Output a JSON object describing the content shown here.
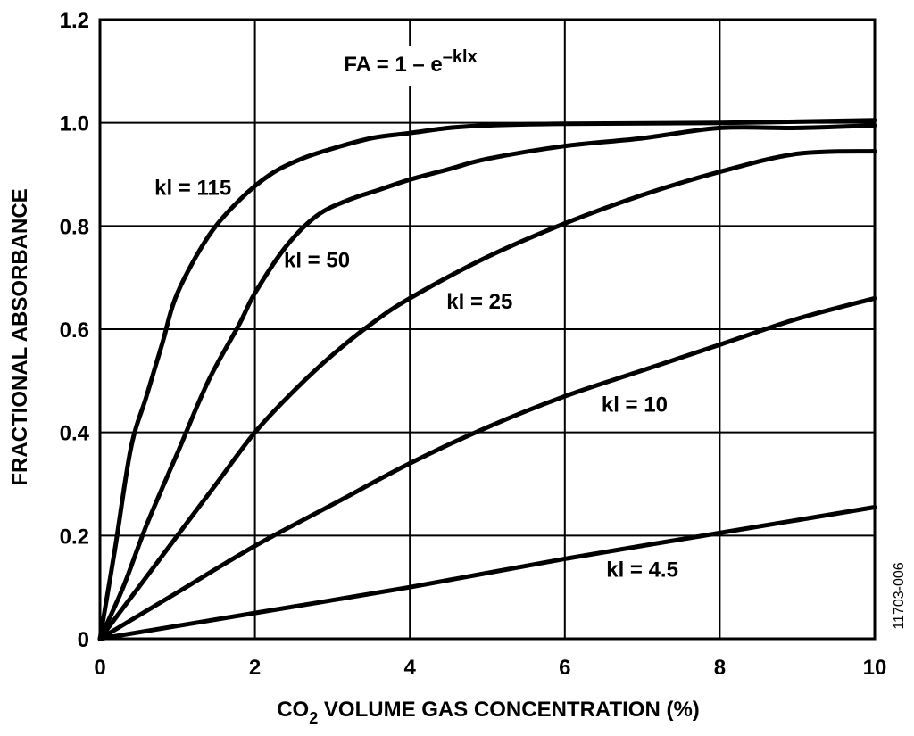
{
  "chart_data": {
    "type": "line",
    "title": "",
    "formula": {
      "base": "FA = 1 – e",
      "exponent": "–klx"
    },
    "xlabel": {
      "prefix": "CO",
      "subscript": "2",
      "suffix": " VOLUME GAS CONCENTRATION (%)"
    },
    "ylabel": "FRACTIONAL ABSORBANCE",
    "xlim": [
      0,
      10
    ],
    "ylim": [
      0,
      1.2
    ],
    "xticks": [
      {
        "value": 0,
        "label": "0"
      },
      {
        "value": 2,
        "label": "2"
      },
      {
        "value": 4,
        "label": "4"
      },
      {
        "value": 6,
        "label": "6"
      },
      {
        "value": 8,
        "label": "8"
      },
      {
        "value": 10,
        "label": "10"
      }
    ],
    "yticks": [
      {
        "value": 0,
        "label": "0"
      },
      {
        "value": 0.2,
        "label": "0.2"
      },
      {
        "value": 0.4,
        "label": "0.4"
      },
      {
        "value": 0.6,
        "label": "0.6"
      },
      {
        "value": 0.8,
        "label": "0.8"
      },
      {
        "value": 1.0,
        "label": "1.0"
      },
      {
        "value": 1.2,
        "label": "1.2"
      }
    ],
    "grid": true,
    "series": [
      {
        "name": "kl = 115",
        "label_at": [
          1.2,
          0.86
        ],
        "points": [
          [
            0,
            0
          ],
          [
            0.2,
            0.18
          ],
          [
            0.4,
            0.37
          ],
          [
            0.6,
            0.47
          ],
          [
            0.8,
            0.57
          ],
          [
            1.0,
            0.67
          ],
          [
            1.4,
            0.78
          ],
          [
            1.8,
            0.85
          ],
          [
            2.2,
            0.9
          ],
          [
            2.6,
            0.93
          ],
          [
            3.0,
            0.95
          ],
          [
            3.5,
            0.97
          ],
          [
            4.0,
            0.98
          ],
          [
            4.5,
            0.99
          ],
          [
            5.0,
            0.995
          ],
          [
            6.0,
            0.998
          ],
          [
            8.0,
            1.0
          ],
          [
            10.0,
            1.005
          ]
        ]
      },
      {
        "name": "kl = 50",
        "label_at": [
          2.8,
          0.72
        ],
        "points": [
          [
            0,
            0
          ],
          [
            0.3,
            0.1
          ],
          [
            0.6,
            0.22
          ],
          [
            1.0,
            0.36
          ],
          [
            1.4,
            0.5
          ],
          [
            1.8,
            0.61
          ],
          [
            2.0,
            0.67
          ],
          [
            2.4,
            0.76
          ],
          [
            2.8,
            0.82
          ],
          [
            3.2,
            0.85
          ],
          [
            3.6,
            0.87
          ],
          [
            4.0,
            0.89
          ],
          [
            4.5,
            0.91
          ],
          [
            5.0,
            0.93
          ],
          [
            6.0,
            0.955
          ],
          [
            7.0,
            0.97
          ],
          [
            8.0,
            0.99
          ],
          [
            9.0,
            0.99
          ],
          [
            10.0,
            0.995
          ]
        ]
      },
      {
        "name": "kl = 25",
        "label_at": [
          4.9,
          0.64
        ],
        "points": [
          [
            0,
            0
          ],
          [
            0.5,
            0.1
          ],
          [
            1.0,
            0.2
          ],
          [
            1.5,
            0.3
          ],
          [
            2.0,
            0.4
          ],
          [
            2.5,
            0.48
          ],
          [
            3.0,
            0.55
          ],
          [
            3.5,
            0.61
          ],
          [
            4.0,
            0.66
          ],
          [
            5.0,
            0.74
          ],
          [
            6.0,
            0.805
          ],
          [
            7.0,
            0.86
          ],
          [
            8.0,
            0.905
          ],
          [
            9.0,
            0.94
          ],
          [
            10.0,
            0.945
          ]
        ]
      },
      {
        "name": "kl = 10",
        "label_at": [
          6.9,
          0.44
        ],
        "points": [
          [
            0,
            0
          ],
          [
            1.0,
            0.09
          ],
          [
            2.0,
            0.18
          ],
          [
            3.0,
            0.26
          ],
          [
            4.0,
            0.34
          ],
          [
            5.0,
            0.41
          ],
          [
            6.0,
            0.47
          ],
          [
            7.0,
            0.52
          ],
          [
            8.0,
            0.57
          ],
          [
            9.0,
            0.62
          ],
          [
            10.0,
            0.66
          ]
        ]
      },
      {
        "name": "kl = 4.5",
        "label_at": [
          7.0,
          0.12
        ],
        "points": [
          [
            0,
            0
          ],
          [
            2.0,
            0.05
          ],
          [
            4.0,
            0.1
          ],
          [
            6.0,
            0.155
          ],
          [
            8.0,
            0.205
          ],
          [
            10.0,
            0.255
          ]
        ]
      }
    ],
    "figure_id": "11703-006"
  }
}
